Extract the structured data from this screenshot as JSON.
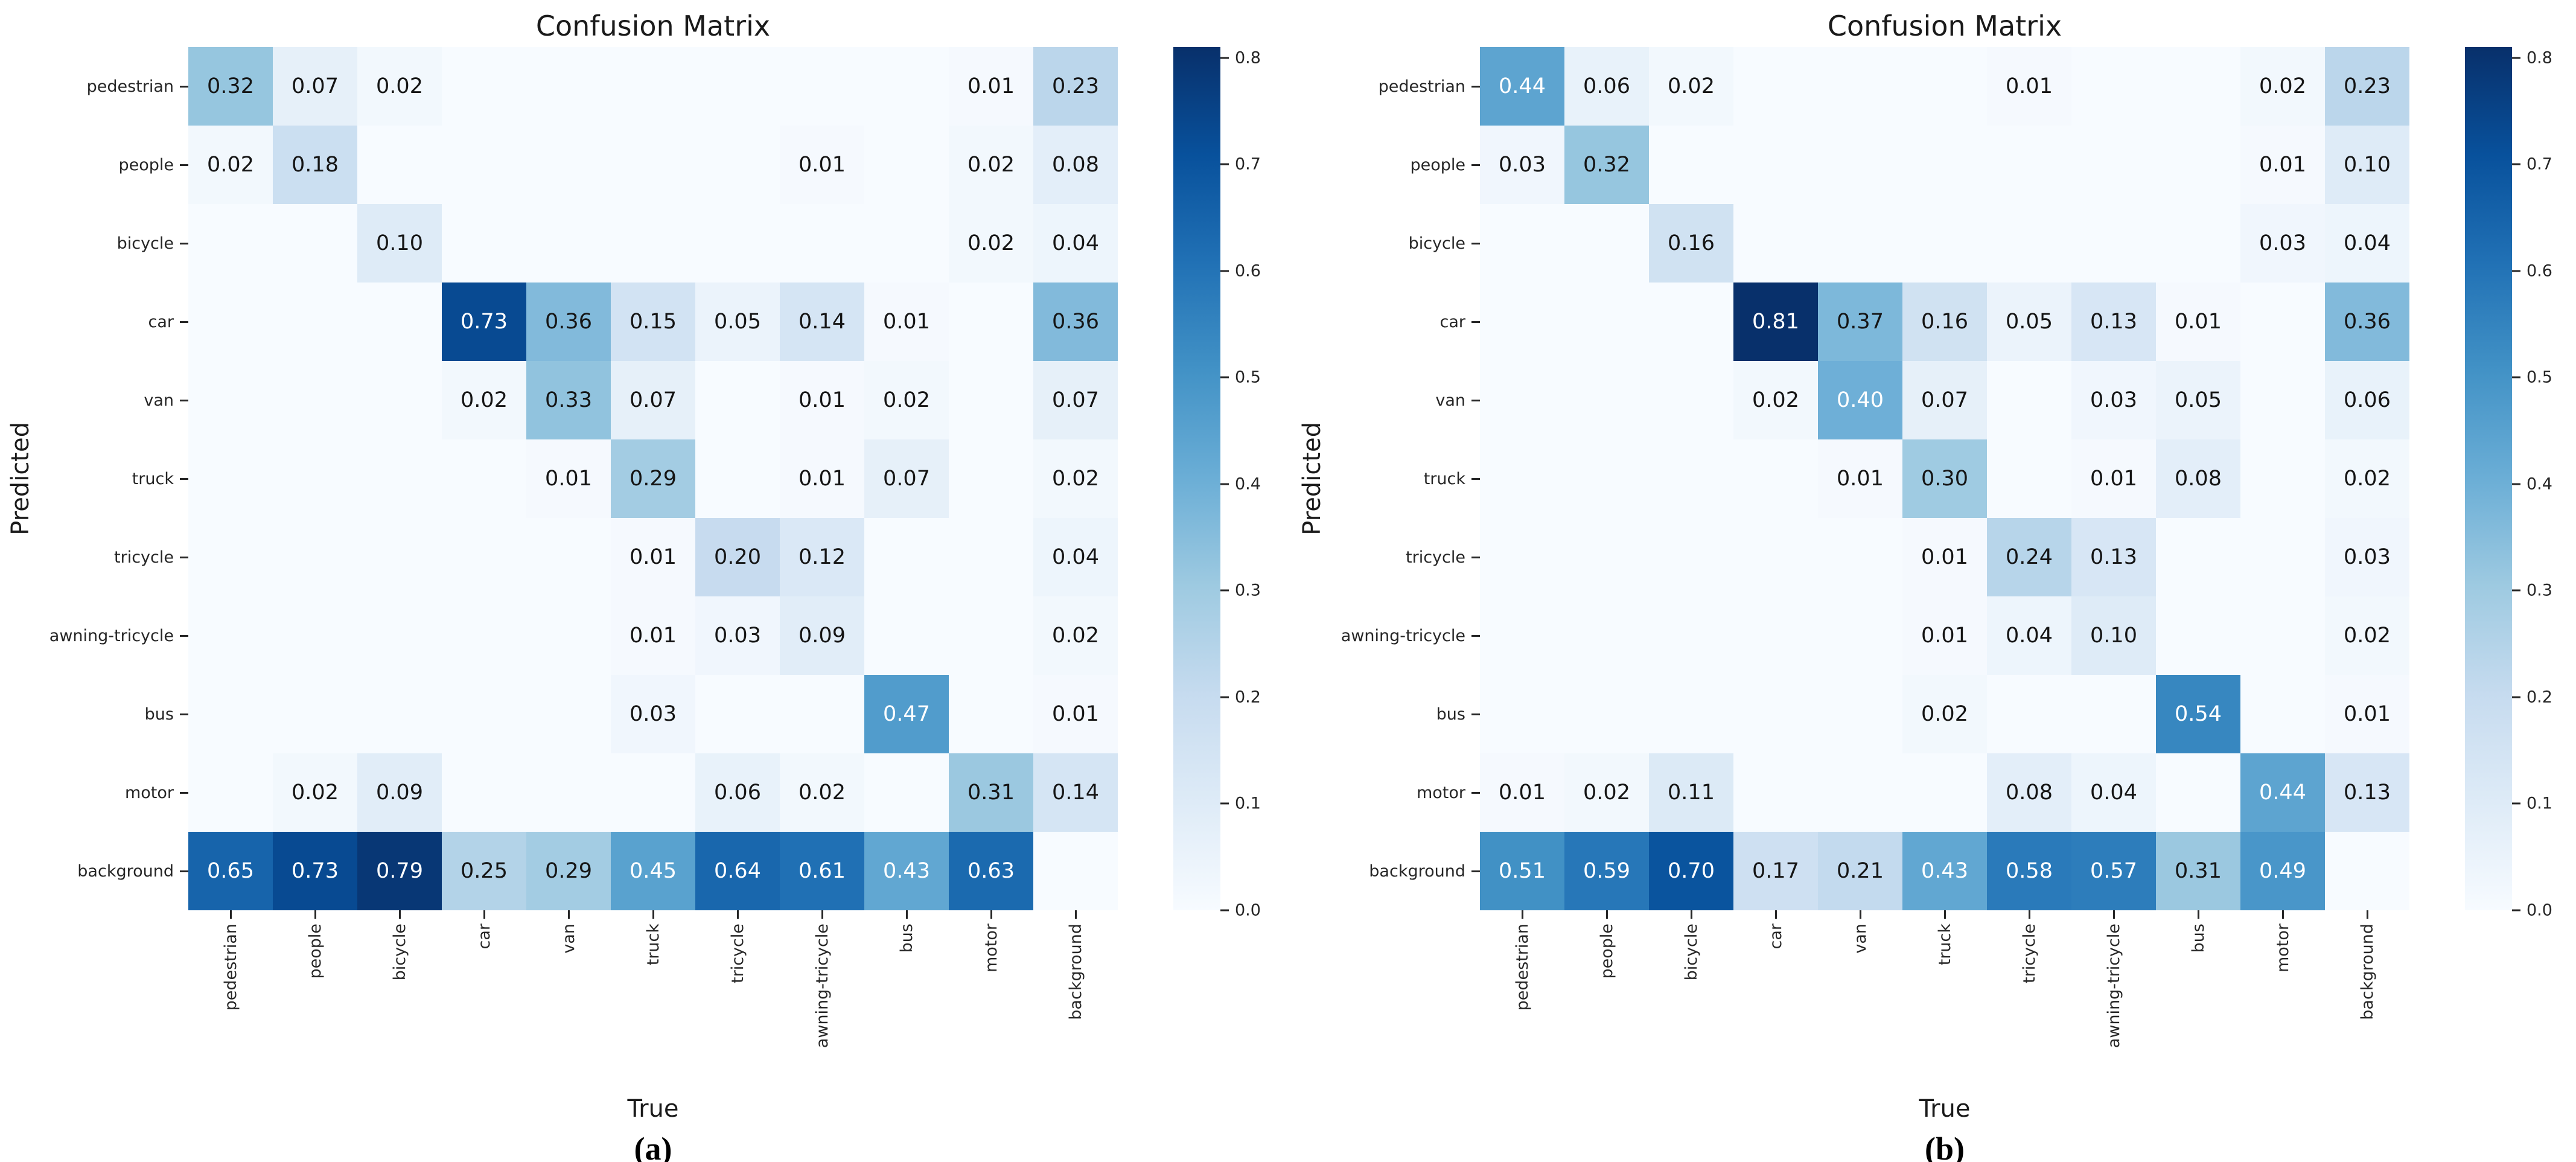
{
  "figure": {
    "background": "#ffffff"
  },
  "colors": {
    "colormap": "Blues",
    "blues_anchors": [
      [
        0.0,
        [
          247,
          251,
          255
        ]
      ],
      [
        0.125,
        [
          222,
          235,
          247
        ]
      ],
      [
        0.25,
        [
          198,
          219,
          239
        ]
      ],
      [
        0.375,
        [
          158,
          202,
          225
        ]
      ],
      [
        0.5,
        [
          107,
          174,
          214
        ]
      ],
      [
        0.625,
        [
          66,
          146,
          198
        ]
      ],
      [
        0.75,
        [
          33,
          113,
          181
        ]
      ],
      [
        0.875,
        [
          8,
          81,
          156
        ]
      ],
      [
        1.0,
        [
          8,
          48,
          107
        ]
      ]
    ],
    "empty_cell": "#f7fbff",
    "annotation_dark": "#151515",
    "annotation_light": "#ffffff",
    "tick_label": "#262626",
    "title": "#1a1a1a"
  },
  "chart_data": [
    {
      "type": "heatmap",
      "title": "Confusion Matrix",
      "xlabel": "True",
      "ylabel": "Predicted",
      "caption": "(a)",
      "categories": [
        "pedestrian",
        "people",
        "bicycle",
        "car",
        "van",
        "truck",
        "tricycle",
        "awning-tricycle",
        "bus",
        "motor",
        "background"
      ],
      "rows": [
        [
          0.32,
          0.07,
          0.02,
          null,
          null,
          null,
          null,
          null,
          null,
          0.01,
          0.23
        ],
        [
          0.02,
          0.18,
          null,
          null,
          null,
          null,
          null,
          0.01,
          null,
          0.02,
          0.08
        ],
        [
          null,
          null,
          0.1,
          null,
          null,
          null,
          null,
          null,
          null,
          0.02,
          0.04
        ],
        [
          null,
          null,
          null,
          0.73,
          0.36,
          0.15,
          0.05,
          0.14,
          0.01,
          null,
          0.36
        ],
        [
          null,
          null,
          null,
          0.02,
          0.33,
          0.07,
          null,
          0.01,
          0.02,
          null,
          0.07
        ],
        [
          null,
          null,
          null,
          null,
          0.01,
          0.29,
          null,
          0.01,
          0.07,
          null,
          0.02
        ],
        [
          null,
          null,
          null,
          null,
          null,
          0.01,
          0.2,
          0.12,
          null,
          null,
          0.04
        ],
        [
          null,
          null,
          null,
          null,
          null,
          0.01,
          0.03,
          0.09,
          null,
          null,
          0.02
        ],
        [
          null,
          null,
          null,
          null,
          null,
          0.03,
          null,
          null,
          0.47,
          null,
          0.01
        ],
        [
          null,
          0.02,
          0.09,
          null,
          null,
          null,
          0.06,
          0.02,
          null,
          0.31,
          0.14
        ],
        [
          0.65,
          0.73,
          0.79,
          0.25,
          0.29,
          0.45,
          0.64,
          0.61,
          0.43,
          0.63,
          null
        ]
      ],
      "vmin": 0.0,
      "vmax": 0.81,
      "colorbar_ticks": [
        0.0,
        0.1,
        0.2,
        0.3,
        0.4,
        0.5,
        0.6,
        0.7,
        0.8
      ]
    },
    {
      "type": "heatmap",
      "title": "Confusion Matrix",
      "xlabel": "True",
      "ylabel": "Predicted",
      "caption": "(b)",
      "categories": [
        "pedestrian",
        "people",
        "bicycle",
        "car",
        "van",
        "truck",
        "tricycle",
        "awning-tricycle",
        "bus",
        "motor",
        "background"
      ],
      "rows": [
        [
          0.44,
          0.06,
          0.02,
          null,
          null,
          null,
          0.01,
          null,
          null,
          0.02,
          0.23
        ],
        [
          0.03,
          0.32,
          null,
          null,
          null,
          null,
          null,
          null,
          null,
          0.01,
          0.1
        ],
        [
          null,
          null,
          0.16,
          null,
          null,
          null,
          null,
          null,
          null,
          0.03,
          0.04
        ],
        [
          null,
          null,
          null,
          0.81,
          0.37,
          0.16,
          0.05,
          0.13,
          0.01,
          null,
          0.36
        ],
        [
          null,
          null,
          null,
          0.02,
          0.4,
          0.07,
          null,
          0.03,
          0.05,
          null,
          0.06
        ],
        [
          null,
          null,
          null,
          null,
          0.01,
          0.3,
          null,
          0.01,
          0.08,
          null,
          0.02
        ],
        [
          null,
          null,
          null,
          null,
          null,
          0.01,
          0.24,
          0.13,
          null,
          null,
          0.03
        ],
        [
          null,
          null,
          null,
          null,
          null,
          0.01,
          0.04,
          0.1,
          null,
          null,
          0.02
        ],
        [
          null,
          null,
          null,
          null,
          null,
          0.02,
          null,
          null,
          0.54,
          null,
          0.01
        ],
        [
          0.01,
          0.02,
          0.11,
          null,
          null,
          null,
          0.08,
          0.04,
          null,
          0.44,
          0.13
        ],
        [
          0.51,
          0.59,
          0.7,
          0.17,
          0.21,
          0.43,
          0.58,
          0.57,
          0.31,
          0.49,
          null
        ]
      ],
      "vmin": 0.0,
      "vmax": 0.81,
      "colorbar_ticks": [
        0.0,
        0.1,
        0.2,
        0.3,
        0.4,
        0.5,
        0.6,
        0.7,
        0.8
      ]
    }
  ]
}
